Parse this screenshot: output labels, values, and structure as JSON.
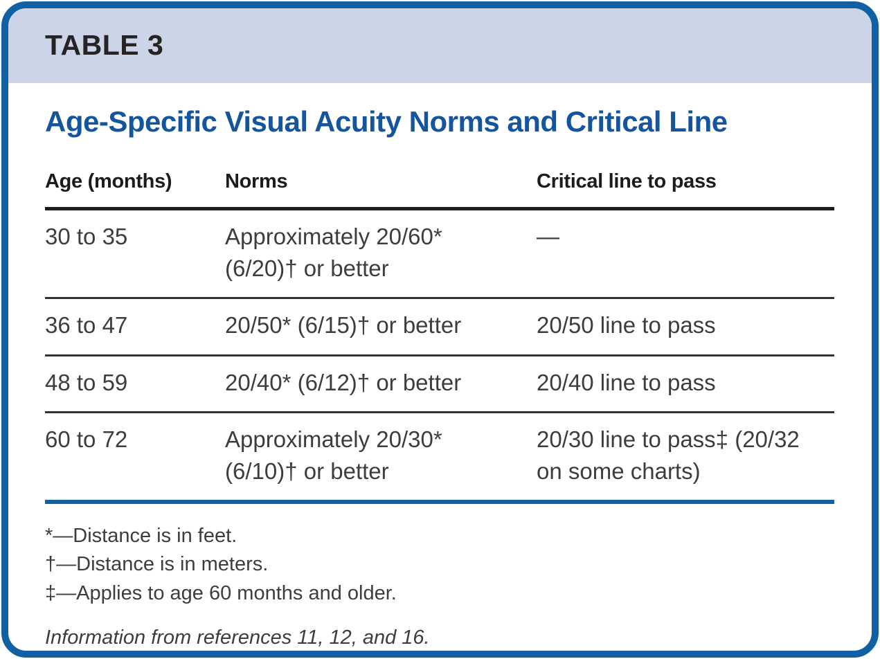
{
  "page": {
    "label": "TABLE 3",
    "title": "Age-Specific Visual Acuity Norms and Critical Line"
  },
  "table": {
    "columns": [
      "Age (months)",
      "Norms",
      "Critical line to pass"
    ],
    "rows": [
      {
        "age": "30 to 35",
        "norms": "Approximately 20/60* (6/20)† or better",
        "critical": "—"
      },
      {
        "age": "36 to 47",
        "norms": "20/50* (6/15)† or better",
        "critical": "20/50 line to pass"
      },
      {
        "age": "48 to 59",
        "norms": "20/40* (6/12)† or better",
        "critical": "20/40 line to pass"
      },
      {
        "age": "60 to 72",
        "norms": "Approximately 20/30* (6/10)† or better",
        "critical": "20/30 line to pass‡ (20/32 on some charts)"
      }
    ]
  },
  "footnotes": [
    "*—Distance is in feet.",
    "†—Distance is in meters.",
    "‡—Applies to age 60 months and older."
  ],
  "source": "Information from references 11, 12, and 16.",
  "colors": {
    "frame_blue": "#1160a4",
    "band_blue": "#ccd5e7",
    "title_blue": "#15559e",
    "rule_black": "#1d1c1c",
    "body_text": "#3d3d3d"
  }
}
